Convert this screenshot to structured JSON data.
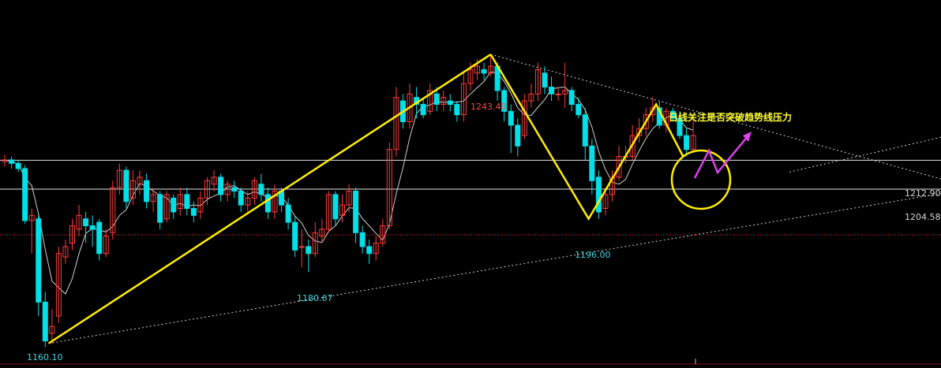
{
  "chart_data": {
    "type": "candlestick",
    "instrument_timeframe": "daily",
    "ylim": [
      1158,
      1250
    ],
    "levels": [
      {
        "value": 1212.9,
        "label": "1212.90"
      },
      {
        "value": 1204.58,
        "label": "1204.58"
      }
    ],
    "points": {
      "low1": {
        "label": "1160.10",
        "value": 1160.1
      },
      "low2": {
        "label": "1180.67",
        "value": 1180.67
      },
      "high": {
        "label": "1243.40",
        "value": 1243.4
      },
      "low3": {
        "label": "1196.00",
        "value": 1196.0
      }
    },
    "annotation": "日线关注是否突破趋势线压力",
    "colors": {
      "up": "#ff3b3b",
      "down": "#00e0e8",
      "ma": "#d0d0d0",
      "pattern": "#ffee00",
      "arrow": "#e040f0",
      "trend": "#cfcfcf"
    },
    "candles": [
      [
        1212.5,
        1213.0,
        1214.5,
        1211.0
      ],
      [
        1213.0,
        1212.0,
        1214.0,
        1210.5
      ],
      [
        1212.0,
        1210.5,
        1213.0,
        1209.5
      ],
      [
        1210.5,
        1195.5,
        1211.5,
        1194.5
      ],
      [
        1195.5,
        1197.0,
        1199.0,
        1186.0
      ],
      [
        1196.0,
        1172.0,
        1197.0,
        1168.0
      ],
      [
        1172.0,
        1160.8,
        1175.0,
        1159.0
      ],
      [
        1163.0,
        1165.0,
        1170.0,
        1160.1
      ],
      [
        1168.0,
        1186.0,
        1188.0,
        1166.0
      ],
      [
        1185.0,
        1188.0,
        1190.0,
        1183.0
      ],
      [
        1189.0,
        1194.0,
        1196.0,
        1187.0
      ],
      [
        1193.0,
        1197.0,
        1200.0,
        1191.0
      ],
      [
        1196.0,
        1194.0,
        1198.0,
        1189.0
      ],
      [
        1194.0,
        1193.0,
        1197.0,
        1188.0
      ],
      [
        1195.0,
        1186.0,
        1196.0,
        1184.0
      ],
      [
        1186.0,
        1191.0,
        1193.0,
        1185.0
      ],
      [
        1192.0,
        1205.0,
        1207.0,
        1190.0
      ],
      [
        1205.0,
        1210.0,
        1212.0,
        1203.0
      ],
      [
        1210.0,
        1201.0,
        1211.0,
        1199.0
      ],
      [
        1202.0,
        1207.0,
        1210.0,
        1200.0
      ],
      [
        1206.0,
        1208.0,
        1210.0,
        1203.0
      ],
      [
        1207.0,
        1201.0,
        1209.0,
        1199.0
      ],
      [
        1201.0,
        1203.0,
        1205.0,
        1198.0
      ],
      [
        1203.0,
        1195.0,
        1204.0,
        1193.0
      ],
      [
        1196.0,
        1203.0,
        1204.0,
        1195.0
      ],
      [
        1202.0,
        1198.0,
        1203.0,
        1196.0
      ],
      [
        1199.0,
        1203.0,
        1205.0,
        1197.0
      ],
      [
        1203.0,
        1199.0,
        1205.0,
        1197.0
      ],
      [
        1199.0,
        1197.0,
        1201.0,
        1195.0
      ],
      [
        1198.0,
        1202.0,
        1204.0,
        1196.0
      ],
      [
        1202.0,
        1207.0,
        1208.0,
        1200.0
      ],
      [
        1206.0,
        1208.0,
        1210.0,
        1204.0
      ],
      [
        1208.0,
        1203.0,
        1209.0,
        1201.0
      ],
      [
        1203.0,
        1206.0,
        1207.0,
        1201.0
      ],
      [
        1205.0,
        1204.0,
        1207.0,
        1202.0
      ],
      [
        1204.0,
        1200.0,
        1205.0,
        1198.0
      ],
      [
        1200.0,
        1202.0,
        1204.0,
        1198.0
      ],
      [
        1202.0,
        1207.0,
        1208.0,
        1200.0
      ],
      [
        1206.0,
        1203.0,
        1209.0,
        1201.0
      ],
      [
        1203.0,
        1198.0,
        1205.0,
        1196.0
      ],
      [
        1198.0,
        1204.0,
        1206.0,
        1196.0
      ],
      [
        1204.0,
        1200.0,
        1205.0,
        1198.0
      ],
      [
        1200.0,
        1195.0,
        1202.0,
        1193.0
      ],
      [
        1195.0,
        1187.0,
        1197.0,
        1185.0
      ],
      [
        1188.0,
        1188.0,
        1193.0,
        1182.0
      ],
      [
        1188.0,
        1186.0,
        1190.0,
        1180.67
      ],
      [
        1186.0,
        1192.0,
        1195.0,
        1185.0
      ],
      [
        1191.0,
        1193.0,
        1196.0,
        1189.0
      ],
      [
        1193.0,
        1203.0,
        1204.0,
        1192.0
      ],
      [
        1203.0,
        1196.0,
        1204.0,
        1194.0
      ],
      [
        1197.0,
        1200.0,
        1203.0,
        1195.0
      ],
      [
        1200.0,
        1204.0,
        1206.0,
        1198.0
      ],
      [
        1204.0,
        1192.0,
        1205.0,
        1189.0
      ],
      [
        1192.0,
        1188.0,
        1194.0,
        1186.0
      ],
      [
        1188.0,
        1186.0,
        1190.0,
        1183.0
      ],
      [
        1186.0,
        1189.0,
        1191.0,
        1184.0
      ],
      [
        1189.0,
        1194.0,
        1196.0,
        1188.0
      ],
      [
        1194.0,
        1216.0,
        1218.0,
        1193.0
      ],
      [
        1216.0,
        1231.0,
        1234.0,
        1214.0
      ],
      [
        1230.0,
        1224.0,
        1232.0,
        1222.0
      ],
      [
        1224.0,
        1232.0,
        1235.0,
        1222.0
      ],
      [
        1231.0,
        1229.0,
        1234.0,
        1225.0
      ],
      [
        1229.0,
        1226.0,
        1231.0,
        1225.0
      ],
      [
        1227.0,
        1233.0,
        1235.0,
        1226.0
      ],
      [
        1232.0,
        1229.0,
        1234.0,
        1227.0
      ],
      [
        1229.0,
        1231.0,
        1233.0,
        1227.0
      ],
      [
        1230.0,
        1229.0,
        1232.0,
        1227.0
      ],
      [
        1229.0,
        1226.0,
        1230.0,
        1224.0
      ],
      [
        1226.0,
        1235.0,
        1238.0,
        1224.0
      ],
      [
        1235.0,
        1239.0,
        1241.0,
        1233.0
      ],
      [
        1238.0,
        1240.0,
        1242.0,
        1236.0
      ],
      [
        1239.0,
        1238.0,
        1241.0,
        1236.0
      ],
      [
        1238.0,
        1240.0,
        1243.4,
        1237.0
      ],
      [
        1240.0,
        1233.0,
        1241.0,
        1230.0
      ],
      [
        1233.0,
        1227.0,
        1234.0,
        1224.0
      ],
      [
        1227.0,
        1223.0,
        1229.0,
        1215.0
      ],
      [
        1223.0,
        1217.0,
        1225.0,
        1214.0
      ],
      [
        1220.0,
        1230.0,
        1232.0,
        1219.0
      ],
      [
        1230.0,
        1232.0,
        1235.0,
        1228.0
      ],
      [
        1232.0,
        1239.0,
        1241.0,
        1230.0
      ],
      [
        1238.0,
        1234.0,
        1240.0,
        1232.0
      ],
      [
        1234.0,
        1232.0,
        1237.0,
        1230.0
      ],
      [
        1232.0,
        1232.0,
        1234.0,
        1230.0
      ],
      [
        1232.0,
        1233.0,
        1241.0,
        1228.0
      ],
      [
        1233.0,
        1229.0,
        1234.0,
        1227.0
      ],
      [
        1229.0,
        1226.0,
        1231.0,
        1225.0
      ],
      [
        1226.0,
        1217.0,
        1228.0,
        1213.0
      ],
      [
        1217.0,
        1207.0,
        1219.0,
        1203.0
      ],
      [
        1208.0,
        1198.0,
        1210.0,
        1196.0
      ],
      [
        1199.0,
        1203.0,
        1205.0,
        1197.0
      ],
      [
        1203.0,
        1208.0,
        1210.0,
        1201.0
      ],
      [
        1208.0,
        1214.0,
        1217.0,
        1207.0
      ],
      [
        1214.0,
        1214.0,
        1217.0,
        1212.0
      ],
      [
        1214.0,
        1220.0,
        1223.0,
        1213.0
      ],
      [
        1220.0,
        1222.0,
        1225.0,
        1218.0
      ],
      [
        1222.0,
        1226.0,
        1228.0,
        1220.0
      ],
      [
        1226.0,
        1228.0,
        1231.0,
        1224.0
      ],
      [
        1228.0,
        1223.0,
        1230.0,
        1222.0
      ],
      [
        1223.0,
        1227.0,
        1228.0,
        1221.0
      ],
      [
        1227.0,
        1225.0,
        1228.0,
        1224.0
      ],
      [
        1225.0,
        1220.0,
        1227.0,
        1219.0
      ],
      [
        1220.0,
        1216.0,
        1222.0,
        1214.0
      ],
      [
        1216.0,
        1220.0,
        1226.0,
        1215.0
      ]
    ]
  }
}
